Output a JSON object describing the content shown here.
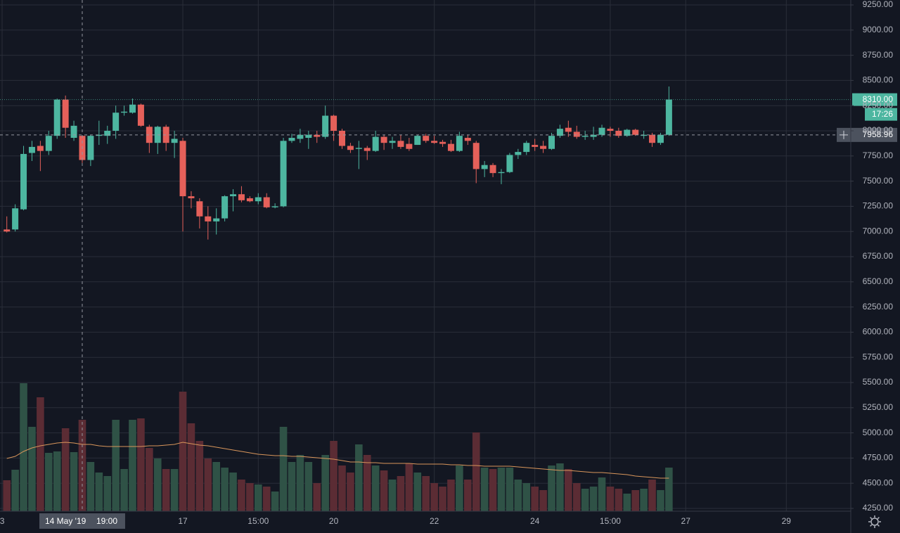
{
  "chart_data": {
    "type": "candlestick",
    "up_color": "#4db6a0",
    "down_color": "#e5605a",
    "volume_up_color": "#2f5246",
    "volume_down_color": "#5b2c34",
    "volume_ma_color": "#d9965b",
    "grid": true,
    "ylim": [
      4250,
      9250
    ],
    "yticks": [
      {
        "value": 9250,
        "label": "9250.00"
      },
      {
        "value": 9000,
        "label": "9000.00"
      },
      {
        "value": 8750,
        "label": "8750.00"
      },
      {
        "value": 8500,
        "label": "8500.00"
      },
      {
        "value": 8250,
        "label": "8250.00"
      },
      {
        "value": 8000,
        "label": "8000.00"
      },
      {
        "value": 7750,
        "label": "7750.00"
      },
      {
        "value": 7500,
        "label": "7500.00"
      },
      {
        "value": 7250,
        "label": "7250.00"
      },
      {
        "value": 7000,
        "label": "7000.00"
      },
      {
        "value": 6750,
        "label": "6750.00"
      },
      {
        "value": 6500,
        "label": "6500.00"
      },
      {
        "value": 6250,
        "label": "6250.00"
      },
      {
        "value": 6000,
        "label": "6000.00"
      },
      {
        "value": 5750,
        "label": "5750.00"
      },
      {
        "value": 5500,
        "label": "5500.00"
      },
      {
        "value": 5250,
        "label": "5250.00"
      },
      {
        "value": 5000,
        "label": "5000.00"
      },
      {
        "value": 4750,
        "label": "4750.00"
      },
      {
        "value": 4500,
        "label": "4500.00"
      },
      {
        "value": 4250,
        "label": "4250.00"
      }
    ],
    "xticks": [
      {
        "value": -0.56,
        "label": "3"
      },
      {
        "value": 21,
        "label": "17"
      },
      {
        "value": 30,
        "label": "15:00"
      },
      {
        "value": 39,
        "label": "20"
      },
      {
        "value": 51,
        "label": "22"
      },
      {
        "value": 63,
        "label": "24"
      },
      {
        "value": 72,
        "label": "15:00"
      },
      {
        "value": 81,
        "label": "27"
      },
      {
        "value": 93,
        "label": "29"
      }
    ],
    "open": [
      7020,
      7020,
      7220,
      7780,
      7850,
      7800,
      7950,
      8310,
      7930,
      7950,
      7710,
      7950,
      7950,
      8000,
      8180,
      8180,
      8260,
      8040,
      7880,
      8040,
      7880,
      7900,
      7350,
      7300,
      7150,
      7100,
      7130,
      7350,
      7370,
      7330,
      7300,
      7340,
      7240,
      7250,
      7900,
      7920,
      7930,
      7960,
      7940,
      8150,
      8000,
      7850,
      7820,
      7830,
      7800,
      7940,
      7880,
      7900,
      7870,
      7860,
      7950,
      7900,
      7890,
      7870,
      7800,
      7930,
      7880,
      7620,
      7660,
      7580,
      7590,
      7760,
      7790,
      7860,
      7850,
      7820,
      7950,
      8030,
      7990,
      7940,
      7940,
      7960,
      8020,
      8000,
      7950,
      8010,
      7950,
      7960,
      7880,
      7960
    ],
    "high": [
      7150,
      7270,
      7850,
      7900,
      7900,
      8000,
      8320,
      8350,
      8100,
      7950,
      7960,
      8100,
      8050,
      8250,
      8250,
      8320,
      8270,
      8060,
      8050,
      8060,
      8000,
      7930,
      7400,
      7330,
      7250,
      7230,
      7360,
      7420,
      7450,
      7350,
      7380,
      7380,
      7280,
      7930,
      7970,
      8020,
      8000,
      8000,
      8250,
      8160,
      8020,
      7880,
      7900,
      7850,
      8000,
      7960,
      7940,
      7960,
      7930,
      7960,
      7970,
      7950,
      7910,
      7910,
      7990,
      7960,
      7900,
      7700,
      7680,
      7620,
      7780,
      7820,
      7900,
      7920,
      7900,
      7980,
      8060,
      8100,
      8050,
      8000,
      8040,
      8060,
      8040,
      8030,
      8020,
      8020,
      8000,
      7980,
      7980,
      8440
    ],
    "low": [
      6990,
      7000,
      7210,
      7700,
      7600,
      7760,
      7920,
      7930,
      7900,
      7680,
      7650,
      7860,
      7870,
      7920,
      8150,
      8170,
      8040,
      7780,
      7770,
      7800,
      7730,
      7000,
      7230,
      7030,
      6920,
      6970,
      7100,
      7200,
      7290,
      7290,
      7270,
      7230,
      7230,
      7240,
      7880,
      7880,
      7820,
      7880,
      7920,
      7900,
      7820,
      7780,
      7620,
      7710,
      7790,
      7810,
      7820,
      7820,
      7800,
      7860,
      7880,
      7870,
      7840,
      7790,
      7790,
      7860,
      7480,
      7540,
      7540,
      7470,
      7580,
      7720,
      7760,
      7800,
      7780,
      7810,
      7930,
      7940,
      7920,
      7910,
      7910,
      7940,
      7940,
      7930,
      7940,
      7950,
      7920,
      7840,
      7860,
      7950
    ],
    "close": [
      7000,
      7230,
      7770,
      7840,
      7800,
      7950,
      8310,
      8030,
      8050,
      7710,
      7950,
      7960,
      8000,
      8180,
      8190,
      8260,
      8050,
      7880,
      8040,
      7880,
      7920,
      7350,
      7330,
      7150,
      7100,
      7130,
      7350,
      7370,
      7310,
      7300,
      7340,
      7240,
      7250,
      7900,
      7930,
      7960,
      7960,
      7940,
      8150,
      8000,
      7850,
      7810,
      7830,
      7800,
      7940,
      7880,
      7900,
      7840,
      7820,
      7950,
      7900,
      7880,
      7870,
      7800,
      7950,
      7900,
      7620,
      7660,
      7580,
      7590,
      7760,
      7790,
      7880,
      7840,
      7820,
      7950,
      8020,
      7990,
      7940,
      7950,
      7960,
      8030,
      8000,
      7950,
      8010,
      7960,
      7960,
      7880,
      7960,
      8310
    ],
    "volume": [
      44,
      59,
      182,
      120,
      162,
      83,
      85,
      118,
      84,
      130,
      70,
      55,
      50,
      130,
      60,
      130,
      132,
      90,
      75,
      60,
      60,
      170,
      125,
      100,
      75,
      70,
      62,
      55,
      45,
      40,
      38,
      35,
      28,
      120,
      70,
      80,
      70,
      40,
      80,
      100,
      65,
      55,
      95,
      80,
      65,
      58,
      45,
      50,
      68,
      55,
      50,
      40,
      35,
      45,
      65,
      45,
      112,
      62,
      60,
      62,
      62,
      45,
      40,
      35,
      30,
      65,
      68,
      60,
      40,
      32,
      35,
      48,
      35,
      32,
      25,
      30,
      32,
      45,
      30,
      62
    ],
    "volume_ma": [
      75,
      78,
      85,
      90,
      93,
      95,
      97,
      98,
      97,
      95,
      95,
      93,
      92,
      92,
      92,
      92,
      92,
      93,
      93,
      94,
      95,
      98,
      96,
      94,
      93,
      91,
      89,
      87,
      85,
      83,
      81,
      80,
      79,
      79,
      78,
      78,
      77,
      76,
      75,
      74,
      72,
      70,
      70,
      69,
      69,
      68,
      68,
      68,
      68,
      67,
      67,
      67,
      67,
      66,
      66,
      65,
      65,
      64,
      64,
      64,
      64,
      63,
      62,
      61,
      60,
      59,
      58,
      58,
      57,
      56,
      55,
      55,
      54,
      53,
      52,
      50,
      49,
      48,
      47,
      47
    ],
    "last_price": {
      "value": 8310,
      "label": "8310.00"
    },
    "countdown": "17:26",
    "crosshair": {
      "price": 7958.96,
      "index": 9,
      "date_label": "14 May '19",
      "time_label": "19:00"
    }
  }
}
